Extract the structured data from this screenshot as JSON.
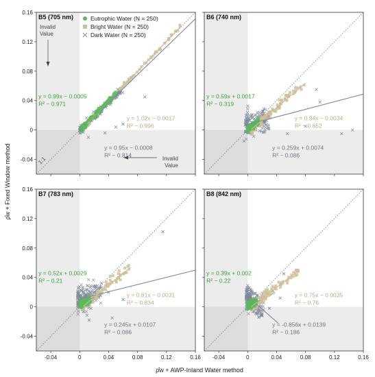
{
  "chart_data": {
    "type": "scatter",
    "xlabel": "ρ̂w + AWP-Inland Water method",
    "ylabel": "ρ̂w + Fixed Window method",
    "xlim": [
      -0.06,
      0.16
    ],
    "ylim": [
      -0.06,
      0.16
    ],
    "ticks": [
      -0.04,
      0,
      0.04,
      0.08,
      0.12,
      0.16
    ],
    "tick_labels": [
      "-0.04",
      "0",
      "0.04",
      "0.08",
      "0.12",
      "0.16"
    ],
    "colors": {
      "eutrophic": "#5cb85c",
      "bright": "#cdbf9a",
      "dark": "#7f8a9a",
      "eut_text": "#3aa33a",
      "bright_text": "#b9ad86",
      "dark_text": "#6e7480"
    },
    "legend": [
      {
        "key": "eutrophic",
        "label": "Eutrophic Water (N = 250)",
        "marker": "circle"
      },
      {
        "key": "bright",
        "label": "Bright Water (N = 250)",
        "marker": "square"
      },
      {
        "key": "dark",
        "label": "Dark Water (N = 250)",
        "marker": "x"
      }
    ],
    "annotations": {
      "invalid_tl": [
        "Invalid",
        "Value"
      ],
      "invalid_br": [
        "Invalid",
        "Value"
      ],
      "one_to_one": "1:1"
    },
    "panels": [
      {
        "title": "B5 (705 nm)",
        "fits": {
          "eutrophic": {
            "slope": 0.99,
            "intercept": -0.0005,
            "eq": "y = 0.99x − 0.0005",
            "r2": "R² ~ 0.971"
          },
          "bright": {
            "slope": 1.02,
            "intercept": -0.0017,
            "eq": "y = 1.02x − 0.0017",
            "r2": "R² ~ 0.996"
          },
          "dark": {
            "slope": 0.95,
            "intercept": -0.0008,
            "eq": "y = 0.95x − 0.0008",
            "r2": "R² ~ 0.814"
          }
        },
        "ranges": {
          "eutrophic": [
            0.002,
            0.05
          ],
          "bright": [
            0.01,
            0.14
          ],
          "dark": [
            0.0,
            0.06
          ]
        },
        "outliers": {
          "dark": [
            [
              0.035,
              -0.004
            ],
            [
              0.05,
              0.004
            ],
            [
              0.09,
              0.045
            ],
            [
              0.06,
              0.008
            ],
            [
              0.012,
              -0.01
            ]
          ]
        }
      },
      {
        "title": "B6 (740 nm)",
        "fits": {
          "eutrophic": {
            "slope": 0.59,
            "intercept": 0.0017,
            "eq": "y = 0.59x + 0.0017",
            "r2": "R² ~ 0.319"
          },
          "bright": {
            "slope": 0.84,
            "intercept": -0.0034,
            "eq": "y = 0.84x − 0.0034",
            "r2": "R² ~ 0.852"
          },
          "dark": {
            "slope": 0.259,
            "intercept": 0.0074,
            "eq": "y = 0.259x + 0.0074",
            "r2": "R² ~ 0.086"
          }
        },
        "ranges": {
          "eutrophic": [
            0.0,
            0.015
          ],
          "bright": [
            0.005,
            0.08
          ],
          "dark": [
            -0.003,
            0.03
          ]
        },
        "outliers": {
          "dark": [
            [
              0.055,
              -0.005
            ],
            [
              0.08,
              0.005
            ],
            [
              0.1,
              0.038
            ],
            [
              0.095,
              0.055
            ],
            [
              0.13,
              -0.005
            ],
            [
              0.145,
              0.0
            ],
            [
              -0.005,
              -0.015
            ]
          ]
        }
      },
      {
        "title": "B7 (783 nm)",
        "fits": {
          "eutrophic": {
            "slope": 0.52,
            "intercept": 0.0029,
            "eq": "y = 0.52x + 0.0029",
            "r2": "R² ~ 0.21"
          },
          "bright": {
            "slope": 0.81,
            "intercept": -0.0031,
            "eq": "y = 0.81x − 0.0031",
            "r2": "R² ~ 0.834"
          },
          "dark": {
            "slope": 0.245,
            "intercept": 0.0107,
            "eq": "y = 0.245x + 0.0107",
            "r2": "R² ~ 0.086"
          }
        },
        "ranges": {
          "eutrophic": [
            0.0,
            0.015
          ],
          "bright": [
            0.005,
            0.07
          ],
          "dark": [
            -0.003,
            0.03
          ]
        },
        "outliers": {
          "dark": [
            [
              0.115,
              0.102
            ],
            [
              0.04,
              0.02
            ],
            [
              0.06,
              0.01
            ],
            [
              0.045,
              -0.015
            ],
            [
              0.03,
              0.032
            ],
            [
              0.013,
              -0.018
            ]
          ]
        }
      },
      {
        "title": "B8 (842 nm)",
        "fits": {
          "eutrophic": {
            "slope": 0.39,
            "intercept": 0.002,
            "eq": "y = 0.39x + 0.002",
            "r2": "R² ~ 0.22"
          },
          "bright": {
            "slope": 0.75,
            "intercept": -0.0035,
            "eq": "y = 0.75x − 0.0035",
            "r2": "R² ~ 0.76"
          },
          "dark": {
            "slope": -0.856,
            "intercept": 0.0139,
            "eq": "y = -0.856x + 0.0139",
            "r2": "R² ~ 0.186"
          }
        },
        "ranges": {
          "eutrophic": [
            0.0,
            0.012
          ],
          "bright": [
            0.005,
            0.07
          ],
          "dark": [
            -0.002,
            0.022
          ]
        },
        "outliers": {
          "dark": [
            [
              0.035,
              0.022
            ],
            [
              0.045,
              0.012
            ],
            [
              0.03,
              -0.002
            ],
            [
              0.02,
              -0.012
            ],
            [
              0.05,
              0.045
            ]
          ]
        }
      }
    ]
  }
}
